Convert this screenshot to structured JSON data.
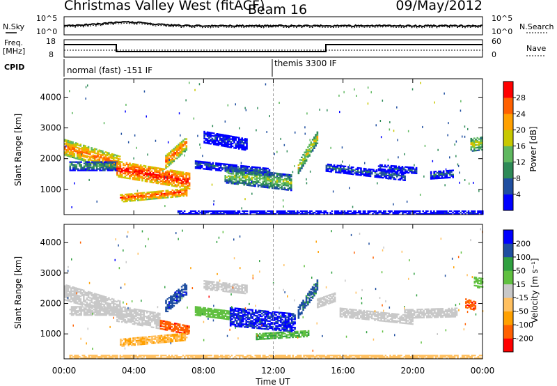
{
  "header": {
    "station": "Christmas Valley West (fitACF)",
    "beam": "Beam 16",
    "date": "09/May/2012"
  },
  "noise_panel": {
    "left_label": "N.Sky",
    "left_ticks": [
      "10^5",
      "10^0"
    ],
    "right_label": "N.Search",
    "right_ticks": [
      "10^5",
      "10^0"
    ]
  },
  "freq_panel": {
    "left_label_1": "Freq.",
    "left_label_2": "[MHz]",
    "left_ticks": [
      "18",
      "8"
    ],
    "right_label": "Nave",
    "right_ticks": [
      "60",
      "0"
    ]
  },
  "cpid": {
    "label": "CPID",
    "modes": [
      {
        "start_ut": "00:00",
        "text": "normal (fast) -151 IF"
      },
      {
        "start_ut": "12:00",
        "text": "themis 3300 IF"
      }
    ]
  },
  "panels": {
    "power": {
      "ylabel": "Slant Range [km]",
      "cbar_label": "Power [dB]"
    },
    "velocity": {
      "ylabel": "Slant Range [km]",
      "cbar_label": "Velocity [m s⁻¹]"
    }
  },
  "x_axis": {
    "label": "Time UT",
    "ticks": [
      "00:00",
      "04:00",
      "08:00",
      "12:00",
      "16:00",
      "20:00",
      "00:00"
    ]
  },
  "chart_data": [
    {
      "type": "heatmap",
      "name": "power",
      "x_range_hours": [
        0,
        24
      ],
      "y_range_km": [
        180,
        4600
      ],
      "ytick_labels": [
        "1000",
        "2000",
        "3000",
        "4000"
      ],
      "yticks_km": [
        1000,
        2000,
        3000,
        4000
      ],
      "colorbar": {
        "label": "Power [dB]",
        "ticks": [
          "4",
          "8",
          "12",
          "16",
          "20",
          "24",
          "28"
        ],
        "range": [
          0,
          30
        ],
        "colors": [
          "#0000ff",
          "#1f4ea0",
          "#2e8a57",
          "#5fb85f",
          "#c8c800",
          "#ffa000",
          "#ff6000",
          "#ff0000"
        ]
      },
      "vertical_marker_ut": 12,
      "echo_regions": [
        {
          "t0": 0.0,
          "t1": 3.2,
          "r_mid_start": 2350,
          "r_mid_end": 1800,
          "width_km": 500,
          "value": 24
        },
        {
          "t0": 0.3,
          "t1": 3.0,
          "r_mid_start": 1750,
          "r_mid_end": 1750,
          "width_km": 300,
          "value": 12
        },
        {
          "t0": 3.0,
          "t1": 7.2,
          "r_mid_start": 1650,
          "r_mid_end": 1250,
          "width_km": 500,
          "value": 28
        },
        {
          "t0": 3.2,
          "t1": 7.0,
          "r_mid_start": 700,
          "r_mid_end": 900,
          "width_km": 250,
          "value": 26
        },
        {
          "t0": 5.8,
          "t1": 7.0,
          "r_mid_start": 1900,
          "r_mid_end": 2500,
          "width_km": 450,
          "value": 24
        },
        {
          "t0": 7.5,
          "t1": 11.8,
          "r_mid_start": 1800,
          "r_mid_end": 1550,
          "width_km": 250,
          "value": 8
        },
        {
          "t0": 8.0,
          "t1": 10.5,
          "r_mid_start": 2700,
          "r_mid_end": 2450,
          "width_km": 400,
          "value": 6
        },
        {
          "t0": 9.2,
          "t1": 13.0,
          "r_mid_start": 1450,
          "r_mid_end": 1200,
          "width_km": 500,
          "value": 15
        },
        {
          "t0": 13.4,
          "t1": 14.5,
          "r_mid_start": 1700,
          "r_mid_end": 2700,
          "width_km": 400,
          "value": 18
        },
        {
          "t0": 15.0,
          "t1": 19.5,
          "r_mid_start": 1700,
          "r_mid_end": 1400,
          "width_km": 250,
          "value": 8
        },
        {
          "t0": 18.0,
          "t1": 20.2,
          "r_mid_start": 1700,
          "r_mid_end": 1600,
          "width_km": 200,
          "value": 7
        },
        {
          "t0": 21.0,
          "t1": 22.3,
          "r_mid_start": 1450,
          "r_mid_end": 1500,
          "width_km": 250,
          "value": 8
        },
        {
          "t0": 23.3,
          "t1": 24.0,
          "r_mid_start": 2450,
          "r_mid_end": 2500,
          "width_km": 450,
          "value": 18
        },
        {
          "t0": 6.5,
          "t1": 24.0,
          "r_mid_start": 240,
          "r_mid_end": 240,
          "width_km": 120,
          "value": 5
        }
      ]
    },
    {
      "type": "heatmap",
      "name": "velocity",
      "x_range_hours": [
        0,
        24
      ],
      "y_range_km": [
        180,
        4600
      ],
      "ytick_labels": [
        "1000",
        "2000",
        "3000",
        "4000"
      ],
      "yticks_km": [
        1000,
        2000,
        3000,
        4000
      ],
      "colorbar": {
        "label": "Velocity [m s⁻¹]",
        "ticks": [
          "200",
          "100",
          "50",
          "15",
          "-15",
          "-50",
          "-100",
          "-200"
        ],
        "range": [
          -250,
          250
        ],
        "colors": [
          "#ff0000",
          "#ff6000",
          "#ffa000",
          "#ffc060",
          "#c8c8c8",
          "#60c040",
          "#30a040",
          "#1f4ea0",
          "#0000ff"
        ]
      },
      "vertical_marker_ut": 12,
      "echo_regions": [
        {
          "t0": 0.0,
          "t1": 3.2,
          "r_mid_start": 2350,
          "r_mid_end": 1800,
          "width_km": 500,
          "value": 0
        },
        {
          "t0": 0.3,
          "t1": 3.0,
          "r_mid_start": 1750,
          "r_mid_end": 1750,
          "width_km": 300,
          "value": 0
        },
        {
          "t0": 3.0,
          "t1": 5.5,
          "r_mid_start": 1650,
          "r_mid_end": 1400,
          "width_km": 500,
          "value": 0
        },
        {
          "t0": 5.5,
          "t1": 7.2,
          "r_mid_start": 1300,
          "r_mid_end": 1100,
          "width_km": 300,
          "value": -180
        },
        {
          "t0": 3.2,
          "t1": 7.0,
          "r_mid_start": 700,
          "r_mid_end": 900,
          "width_km": 250,
          "value": -80
        },
        {
          "t0": 5.8,
          "t1": 7.0,
          "r_mid_start": 1900,
          "r_mid_end": 2500,
          "width_km": 450,
          "value": 180
        },
        {
          "t0": 7.5,
          "t1": 9.5,
          "r_mid_start": 1750,
          "r_mid_end": 1600,
          "width_km": 300,
          "value": 60
        },
        {
          "t0": 8.0,
          "t1": 10.5,
          "r_mid_start": 2600,
          "r_mid_end": 2450,
          "width_km": 300,
          "value": 0
        },
        {
          "t0": 9.5,
          "t1": 13.2,
          "r_mid_start": 1550,
          "r_mid_end": 1350,
          "width_km": 600,
          "value": 200
        },
        {
          "t0": 11.0,
          "t1": 14.0,
          "r_mid_start": 900,
          "r_mid_end": 1000,
          "width_km": 200,
          "value": 80
        },
        {
          "t0": 13.4,
          "t1": 14.5,
          "r_mid_start": 1700,
          "r_mid_end": 2600,
          "width_km": 400,
          "value": 150
        },
        {
          "t0": 14.5,
          "t1": 15.5,
          "r_mid_start": 2000,
          "r_mid_end": 2200,
          "width_km": 300,
          "value": 0
        },
        {
          "t0": 15.8,
          "t1": 20.0,
          "r_mid_start": 1700,
          "r_mid_end": 1450,
          "width_km": 300,
          "value": 0
        },
        {
          "t0": 19.5,
          "t1": 22.5,
          "r_mid_start": 1650,
          "r_mid_end": 1700,
          "width_km": 300,
          "value": 0
        },
        {
          "t0": 23.0,
          "t1": 23.6,
          "r_mid_start": 2000,
          "r_mid_end": 1900,
          "width_km": 300,
          "value": -180
        },
        {
          "t0": 23.5,
          "t1": 24.0,
          "r_mid_start": 2700,
          "r_mid_end": 2650,
          "width_km": 350,
          "value": 60
        },
        {
          "t0": 0.3,
          "t1": 24.0,
          "r_mid_start": 240,
          "r_mid_end": 240,
          "width_km": 120,
          "value": -60
        }
      ]
    }
  ]
}
